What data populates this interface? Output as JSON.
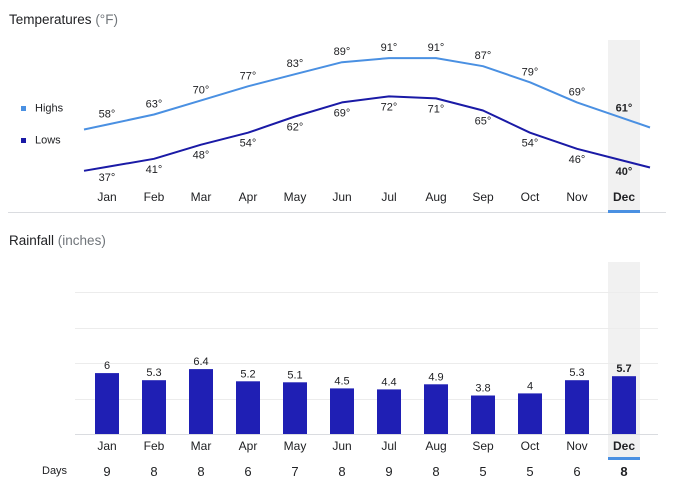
{
  "temperature": {
    "title": "Temperatures",
    "unit": "(°F)",
    "legend": [
      {
        "name": "Highs",
        "color": "#4a90e2"
      },
      {
        "name": "Lows",
        "color": "#1a1aa6"
      }
    ]
  },
  "rainfall": {
    "title": "Rainfall",
    "unit": "(inches)",
    "days_label": "Days"
  },
  "colors": {
    "highs": "#4a90e2",
    "lows": "#1a1aa6",
    "bar": "#1f1fb4",
    "selected_bg": "#f1f1f1",
    "selected_underline": "#4a90e2"
  },
  "selected_month": "Dec",
  "chart_data": [
    {
      "type": "line",
      "title": "Temperatures (°F)",
      "categories": [
        "Jan",
        "Feb",
        "Mar",
        "Apr",
        "May",
        "Jun",
        "Jul",
        "Aug",
        "Sep",
        "Oct",
        "Nov",
        "Dec"
      ],
      "series": [
        {
          "name": "Highs",
          "values": [
            58,
            63,
            70,
            77,
            83,
            89,
            91,
            91,
            87,
            79,
            69,
            61
          ],
          "labels": [
            "58°",
            "63°",
            "70°",
            "77°",
            "83°",
            "89°",
            "91°",
            "91°",
            "87°",
            "79°",
            "69°",
            "61°"
          ]
        },
        {
          "name": "Lows",
          "values": [
            37,
            41,
            48,
            54,
            62,
            69,
            72,
            71,
            65,
            54,
            46,
            40
          ],
          "labels": [
            "37°",
            "41°",
            "48°",
            "54°",
            "62°",
            "69°",
            "72°",
            "71°",
            "65°",
            "54°",
            "46°",
            "40°"
          ]
        }
      ],
      "ylim": [
        30,
        100
      ],
      "legend": "left"
    },
    {
      "type": "bar",
      "title": "Rainfall (inches)",
      "categories": [
        "Jan",
        "Feb",
        "Mar",
        "Apr",
        "May",
        "Jun",
        "Jul",
        "Aug",
        "Sep",
        "Oct",
        "Nov",
        "Dec"
      ],
      "values": [
        6,
        5.3,
        6.4,
        5.2,
        5.1,
        4.5,
        4.4,
        4.9,
        3.8,
        4,
        5.3,
        5.7
      ],
      "value_labels": [
        "6",
        "5.3",
        "6.4",
        "5.2",
        "5.1",
        "4.5",
        "4.4",
        "4.9",
        "3.8",
        "4",
        "5.3",
        "5.7"
      ],
      "ylim": [
        0,
        14
      ],
      "grid": true,
      "days": [
        "9",
        "8",
        "8",
        "6",
        "7",
        "8",
        "9",
        "8",
        "5",
        "5",
        "6",
        "8"
      ]
    }
  ]
}
